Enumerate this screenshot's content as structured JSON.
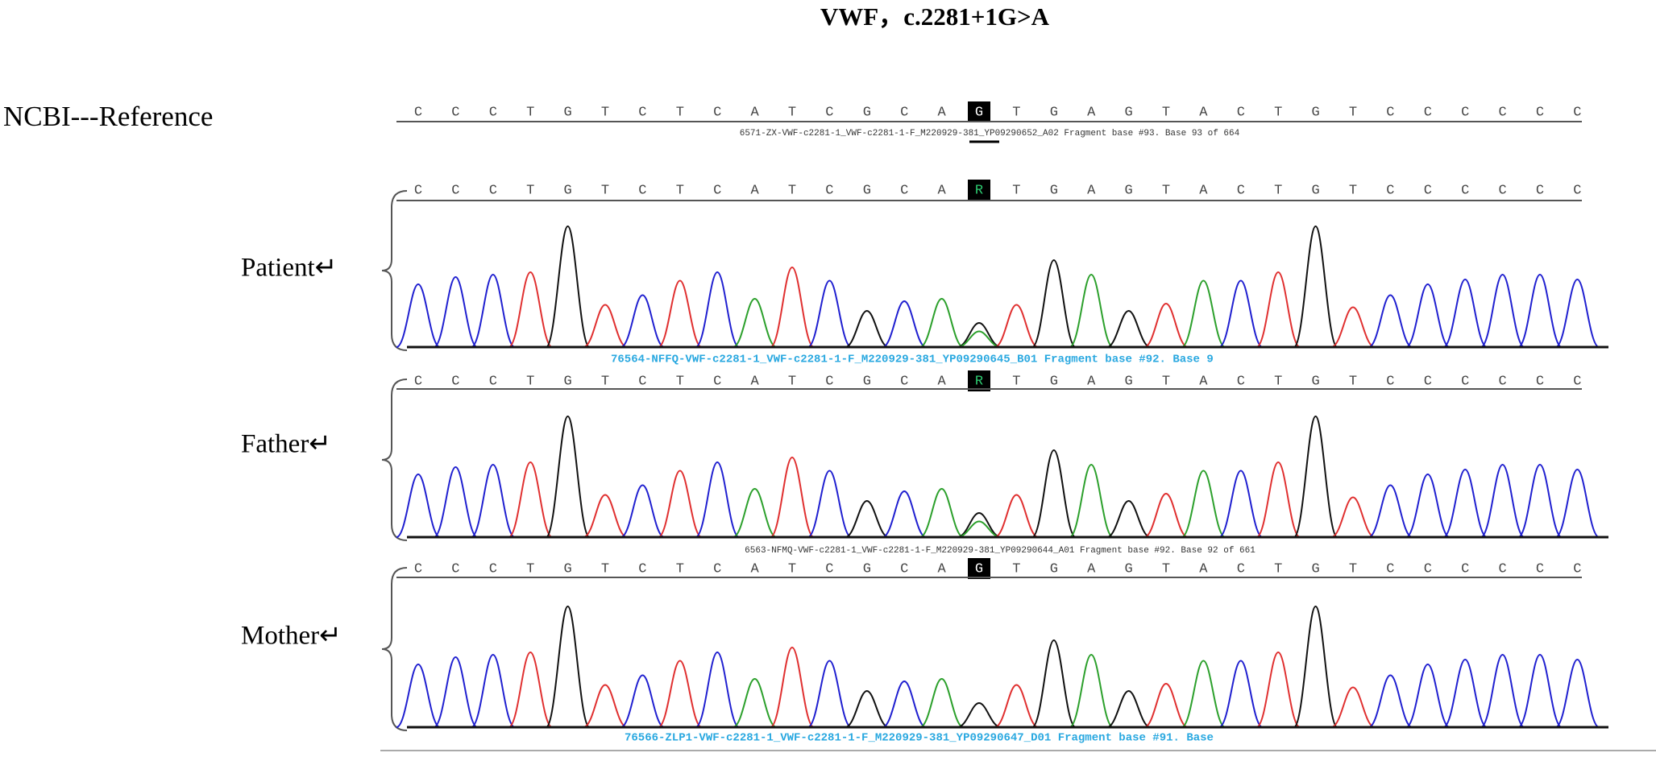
{
  "title": "VWF，c.2281+1G>A",
  "reference": {
    "label": "NCBI---Reference",
    "bases": [
      "C",
      "C",
      "C",
      "T",
      "G",
      "T",
      "C",
      "T",
      "C",
      "A",
      "T",
      "C",
      "G",
      "C",
      "A",
      "G",
      "T",
      "G",
      "A",
      "G",
      "T",
      "A",
      "C",
      "T",
      "G",
      "T",
      "C",
      "C",
      "C",
      "C",
      "C",
      "C"
    ],
    "file": "6571-ZX-VWF-c2281-1_VWF-c2281-1-F_M220929-381_YP09290652_A02 Fragment base #93. Base 93 of 664"
  },
  "samples": [
    {
      "label": "Patient↵",
      "bases": [
        "C",
        "C",
        "C",
        "T",
        "G",
        "T",
        "C",
        "T",
        "C",
        "A",
        "T",
        "C",
        "G",
        "C",
        "A",
        "R",
        "T",
        "G",
        "A",
        "G",
        "T",
        "A",
        "C",
        "T",
        "G",
        "T",
        "C",
        "C",
        "C",
        "C",
        "C",
        "C"
      ],
      "file": "76564-NFFQ-VWF-c2281-1_VWF-c2281-1-F_M220929-381_YP09290645_B01 Fragment base #92. Base 9"
    },
    {
      "label": "Father↵",
      "bases": [
        "C",
        "C",
        "C",
        "T",
        "G",
        "T",
        "C",
        "T",
        "C",
        "A",
        "T",
        "C",
        "G",
        "C",
        "A",
        "R",
        "T",
        "G",
        "A",
        "G",
        "T",
        "A",
        "C",
        "T",
        "G",
        "T",
        "C",
        "C",
        "C",
        "C",
        "C",
        "C"
      ],
      "file": "6563-NFMQ-VWF-c2281-1_VWF-c2281-1-F_M220929-381_YP09290644_A01 Fragment base #92. Base 92 of 661"
    },
    {
      "label": "Mother↵",
      "bases": [
        "C",
        "C",
        "C",
        "T",
        "G",
        "T",
        "C",
        "T",
        "C",
        "A",
        "T",
        "C",
        "G",
        "C",
        "A",
        "G",
        "T",
        "G",
        "A",
        "G",
        "T",
        "A",
        "C",
        "T",
        "G",
        "T",
        "C",
        "C",
        "C",
        "C",
        "C",
        "C"
      ],
      "file": "76566-ZLP1-VWF-c2281-1_VWF-c2281-1-F_M220929-381_YP09290647_D01 Fragment base #91. Base"
    }
  ]
}
